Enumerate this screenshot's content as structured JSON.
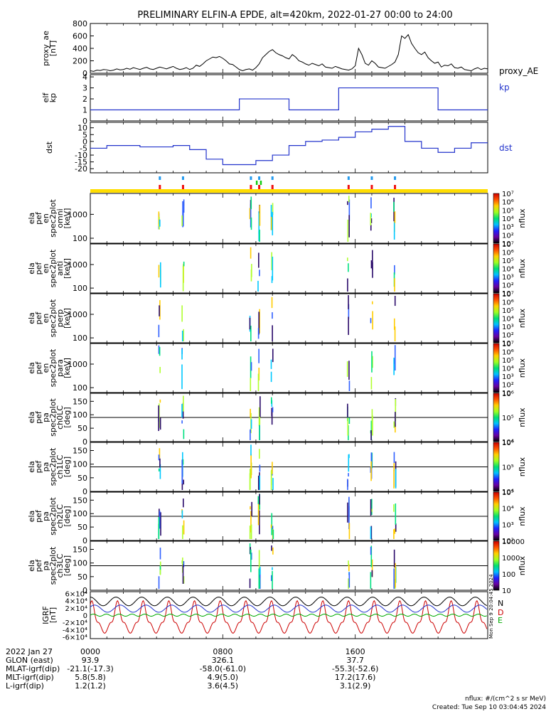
{
  "title": "PRELIMINARY ELFIN-A EPDE, alt=420km, 2022-01-27 00:00 to 24:00",
  "chart_data": [
    {
      "id": "proxy_ae",
      "type": "line",
      "ylabel": [
        "proxy_ae",
        "[nT]"
      ],
      "series_label": "proxy_AE",
      "yticks": [
        0,
        200,
        400,
        600,
        800
      ],
      "ylim": [
        0,
        800
      ],
      "x": [
        0,
        0.2,
        0.4,
        0.6,
        0.8,
        1.0,
        1.2,
        1.4,
        1.6,
        1.8,
        2.0,
        2.2,
        2.4,
        2.6,
        2.8,
        3.0,
        3.2,
        3.4,
        3.6,
        3.8,
        4.0,
        4.2,
        4.4,
        4.6,
        4.8,
        5.0,
        5.2,
        5.4,
        5.6,
        5.8,
        6.0,
        6.2,
        6.4,
        6.6,
        6.8,
        7.0,
        7.2,
        7.4,
        7.6,
        7.8,
        8.0,
        8.2,
        8.4,
        8.6,
        8.8,
        9.0,
        9.2,
        9.4,
        9.6,
        9.8,
        10.0,
        10.2,
        10.4,
        10.6,
        10.8,
        11.0,
        11.2,
        11.4,
        11.6,
        11.8,
        12.0,
        12.2,
        12.4,
        12.6,
        12.8,
        13.0,
        13.2,
        13.4,
        13.6,
        13.8,
        14.0,
        14.2,
        14.4,
        14.6,
        14.8,
        15.0,
        15.2,
        15.4,
        15.6,
        15.8,
        16.0,
        16.2,
        16.4,
        16.6,
        16.8,
        17.0,
        17.2,
        17.4,
        17.6,
        17.8,
        18.0,
        18.2,
        18.4,
        18.6,
        18.8,
        19.0,
        19.2,
        19.4,
        19.6,
        19.8,
        20.0,
        20.2,
        20.4,
        20.6,
        20.8,
        21.0,
        21.2,
        21.4,
        21.6,
        21.8,
        22.0,
        22.2,
        22.4,
        22.6,
        22.8,
        23.0,
        23.2,
        23.4,
        23.6,
        23.8,
        24.0
      ],
      "y": [
        40,
        30,
        50,
        45,
        60,
        55,
        40,
        50,
        70,
        55,
        60,
        80,
        65,
        90,
        75,
        60,
        80,
        95,
        70,
        60,
        80,
        100,
        85,
        70,
        90,
        110,
        80,
        60,
        70,
        90,
        60,
        80,
        130,
        110,
        150,
        200,
        230,
        260,
        250,
        270,
        240,
        200,
        150,
        140,
        100,
        60,
        40,
        60,
        70,
        50,
        90,
        150,
        250,
        300,
        350,
        380,
        330,
        300,
        280,
        250,
        230,
        300,
        260,
        200,
        180,
        150,
        130,
        160,
        140,
        120,
        150,
        100,
        90,
        80,
        110,
        90,
        70,
        60,
        50,
        70,
        120,
        400,
        300,
        160,
        130,
        200,
        160,
        100,
        90,
        80,
        110,
        140,
        180,
        300,
        600,
        560,
        620,
        480,
        400,
        330,
        300,
        340,
        250,
        200,
        160,
        180,
        100,
        130,
        120,
        150,
        90,
        80,
        100,
        60,
        50,
        40,
        70,
        90,
        60,
        80,
        70
      ]
    },
    {
      "id": "kp",
      "type": "line",
      "ylabel": [
        "elf",
        "kp"
      ],
      "series_label": "kp",
      "yticks": [
        0,
        1,
        2,
        3,
        4
      ],
      "ylim": [
        0,
        4.2
      ],
      "x": [
        0,
        9,
        9,
        12,
        12,
        15,
        15,
        21,
        21,
        24
      ],
      "y": [
        1,
        1,
        2,
        2,
        1,
        1,
        3,
        3,
        1,
        1
      ]
    },
    {
      "id": "dst",
      "type": "line",
      "ylabel": [
        "dst"
      ],
      "series_label": "dst",
      "yticks": [
        -20,
        -15,
        -10,
        -5,
        0,
        5,
        10
      ],
      "ylim": [
        -23,
        14
      ],
      "x": [
        0,
        1,
        1,
        2,
        2,
        3,
        3,
        4,
        4,
        5,
        5,
        6,
        6,
        7,
        7,
        8,
        8,
        9,
        9,
        10,
        10,
        11,
        11,
        12,
        12,
        13,
        13,
        14,
        14,
        15,
        15,
        16,
        16,
        17,
        17,
        18,
        18,
        19,
        19,
        20,
        20,
        21,
        21,
        22,
        22,
        23,
        23,
        24
      ],
      "y": [
        -5,
        -5,
        -3,
        -3,
        -3,
        -3,
        -4,
        -4,
        -4,
        -4,
        -3,
        -3,
        -6,
        -6,
        -13,
        -13,
        -17,
        -17,
        -17,
        -17,
        -14,
        -14,
        -10,
        -10,
        -3,
        -3,
        0,
        0,
        1,
        1,
        3,
        3,
        7,
        7,
        9,
        9,
        11,
        11,
        0,
        0,
        -5,
        -5,
        -8,
        -8,
        -5,
        -5,
        -1,
        -1
      ]
    },
    {
      "id": "energy_spectrograms",
      "type": "heatmap",
      "panels": [
        {
          "ylabel": [
            "ela",
            "pef",
            "en",
            "spec2plot",
            "omni",
            "[keV]"
          ],
          "cbar": "nflux"
        },
        {
          "ylabel": [
            "ela",
            "pef",
            "en",
            "spec2plot",
            "anti",
            "[keV]"
          ],
          "cbar": "nflux"
        },
        {
          "ylabel": [
            "ela",
            "pef",
            "en",
            "spec2plot",
            "perp",
            "[keV]"
          ],
          "cbar": "nflux"
        },
        {
          "ylabel": [
            "ela",
            "pef",
            "en",
            "spec2plot",
            "para",
            "[keV]"
          ],
          "cbar": "nflux"
        }
      ],
      "yticks": [
        "100",
        "1000"
      ],
      "colorbar_ticks": [
        "10",
        "10²",
        "10³",
        "10⁴",
        "10⁵",
        "10⁶",
        "10⁷"
      ],
      "data_passes_hours": [
        4.2,
        5.6,
        9.7,
        10.2,
        11.0,
        15.6,
        17.0,
        18.4
      ]
    },
    {
      "id": "pitch_angle_spectrograms",
      "type": "heatmap",
      "panels": [
        {
          "ylabel": [
            "ela",
            "pef",
            "pa",
            "spec2plot",
            "ch0LC",
            "[deg]"
          ],
          "cbar": "nflux",
          "colorbar_ticks": [
            "10⁴",
            "10⁵",
            "10⁶"
          ]
        },
        {
          "ylabel": [
            "ela",
            "pef",
            "pa",
            "spec2plot",
            "ch1LC",
            "[deg]"
          ],
          "cbar": "nflux",
          "colorbar_ticks": [
            "10⁴",
            "10⁵",
            "10⁶"
          ]
        },
        {
          "ylabel": [
            "ela",
            "pef",
            "pa",
            "spec2plot",
            "ch2LC",
            "[deg]"
          ],
          "cbar": "nflux",
          "colorbar_ticks": [
            "10²",
            "10³",
            "10⁴",
            "10⁵"
          ]
        },
        {
          "ylabel": [
            "ela",
            "pef",
            "pa",
            "spec2plot",
            "ch3LC",
            "[deg]"
          ],
          "cbar": "nflux",
          "colorbar_ticks": [
            "10",
            "100",
            "1000",
            "10000"
          ]
        }
      ],
      "yticks": [
        0,
        50,
        100,
        150
      ]
    },
    {
      "id": "igrf_field",
      "type": "line",
      "ylabel": [
        "IGRF",
        "[nT]"
      ],
      "yticks": [
        "-6×10⁴",
        "-4×10⁴",
        "-2×10⁴",
        "0",
        "2×10⁴",
        "4×10⁴",
        "6×10⁴"
      ],
      "ylim": [
        -65000,
        65000
      ],
      "legend": [
        "N",
        "E",
        "D"
      ],
      "colors": {
        "N": "#000000",
        "E": "#00aa00",
        "D": "#cc0000",
        "extra": "#2233cc"
      },
      "orbit_period_hours": 1.55
    }
  ],
  "xaxis": {
    "ticks": [
      "0000",
      "0800",
      "1600"
    ],
    "rows": [
      {
        "label": "2022 Jan 27",
        "values": [
          "0000",
          "0800",
          "1600"
        ]
      },
      {
        "label": "GLON (east)",
        "values": [
          "93.9",
          "326.1",
          "37.7"
        ]
      },
      {
        "label": "MLAT-igrf(dip)",
        "values": [
          "-21.1(-17.3)",
          "-58.0(-61.0)",
          "-55.3(-52.6)"
        ]
      },
      {
        "label": "MLT-igrf(dip)",
        "values": [
          "5.8(5.8)",
          "4.9(5.0)",
          "17.2(17.6)"
        ]
      },
      {
        "label": "L-igrf(dip)",
        "values": [
          "1.2(1.2)",
          "3.6(4.5)",
          "3.1(2.9)"
        ]
      }
    ]
  },
  "footer": {
    "units": "nflux: #/(cm^2 s sr MeV)",
    "created": "Created: Tue Sep 10 03:04:45 2024",
    "side_stamp": "Mon Sep  9 20:04:45 2024"
  },
  "colors": {
    "kp": "#2233cc",
    "dst": "#2233cc",
    "state_bar": "#ffdd00",
    "mark_blue": "#2299ee",
    "mark_red": "#ee1111",
    "mark_green": "#11cc11"
  }
}
